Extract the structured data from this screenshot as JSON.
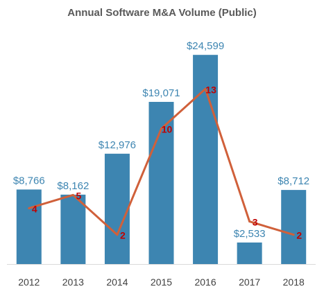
{
  "chart_data": {
    "type": "bar",
    "title": "Annual Software M&A Volume (Public)",
    "xlabel": "",
    "ylabel": "",
    "categories": [
      "2012",
      "2013",
      "2014",
      "2015",
      "2016",
      "2017",
      "2018"
    ],
    "bar_series": {
      "values": [
        8766,
        8162,
        12976,
        19071,
        24599,
        2533,
        8712
      ],
      "labels": [
        "$8,766",
        "$8,162",
        "$12,976",
        "$19,071",
        "$24,599",
        "$2,533",
        "$8,712"
      ],
      "color": "#3d85b1",
      "label_color": "#3d85b1"
    },
    "line_series": {
      "values": [
        4,
        5,
        2,
        10,
        13,
        3,
        2
      ],
      "labels": [
        "4",
        "5",
        "2",
        "10",
        "13",
        "3",
        "2"
      ],
      "color": "#d0603a",
      "label_color": "#c00000"
    },
    "ylim": [
      0,
      26000
    ],
    "line_ylim": [
      0,
      15
    ],
    "grid": false,
    "legend": "none"
  },
  "colors": {
    "axis": "#d9d9d9",
    "tick_text": "#404040",
    "title_text": "#595959"
  }
}
